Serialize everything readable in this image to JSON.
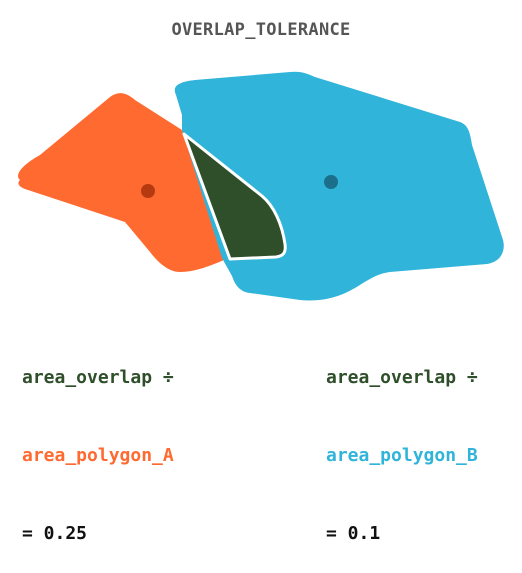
{
  "title": "OVERLAP_TOLERANCE",
  "colors": {
    "polygon_a": "#ff6a30",
    "polygon_b": "#30b4da",
    "overlap": "#2f4f2a",
    "center_a": "#b53a10",
    "center_b": "#1c6f8a",
    "title": "#555555",
    "result": "#111111"
  },
  "formula_a": {
    "numerator": "area_overlap ÷",
    "denominator": "area_polygon_A",
    "result": "= 0.25"
  },
  "formula_b": {
    "numerator": "area_overlap ÷",
    "denominator": "area_polygon_B",
    "result": "= 0.1"
  }
}
